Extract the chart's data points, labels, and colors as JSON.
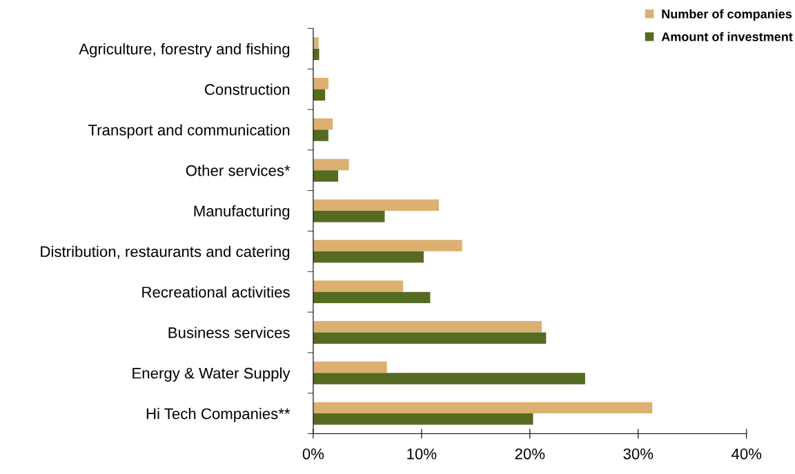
{
  "chart_data": {
    "type": "bar",
    "orientation": "horizontal",
    "categories": [
      "Agriculture, forestry and fishing",
      "Construction",
      "Transport and communication",
      "Other services*",
      "Manufacturing",
      "Distribution, restaurants and catering",
      "Recreational activities",
      "Business services",
      "Energy & Water Supply",
      "Hi Tech Companies**"
    ],
    "series": [
      {
        "name": "Number of companies",
        "color": "#dcb070",
        "values": [
          0.5,
          1.4,
          1.8,
          3.3,
          11.6,
          13.75,
          8.3,
          21.1,
          6.8,
          31.3
        ]
      },
      {
        "name": "Amount of investment",
        "color": "#556b21",
        "values": [
          0.55,
          1.1,
          1.4,
          2.3,
          6.6,
          10.2,
          10.8,
          21.5,
          25.1,
          20.3
        ]
      }
    ],
    "xlim": [
      0,
      40
    ],
    "xticks": [
      {
        "value": 0,
        "label": "0%"
      },
      {
        "value": 10,
        "label": "10%"
      },
      {
        "value": 20,
        "label": "20%"
      },
      {
        "value": 30,
        "label": "30%"
      },
      {
        "value": 40,
        "label": "40%"
      }
    ],
    "grid": false,
    "legend": "top right"
  }
}
